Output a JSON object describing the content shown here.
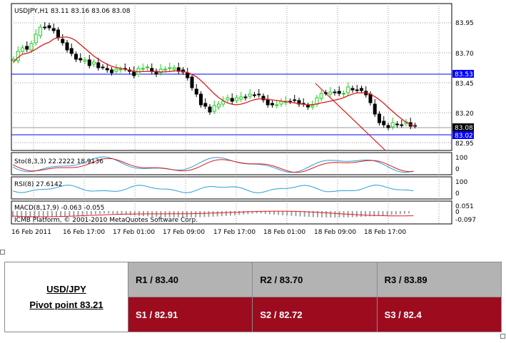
{
  "chart": {
    "title": "USDJPY,H1  83.11 83.16 83.06 83.08",
    "price_ticks": [
      "83.95",
      "83.70",
      "83.45",
      "83.20",
      "82.95"
    ],
    "label_upper_line": "83.53",
    "label_current": "83.08",
    "label_lower_line": "83.02",
    "stoch": {
      "label": "Sto(8,3,3) 22.2222 18.9136",
      "ticks": [
        "100",
        "0"
      ]
    },
    "rsi": {
      "label": "RSI(8) 27.6142",
      "ticks": [
        "100",
        "0"
      ]
    },
    "macd": {
      "label": "MACD(8,17,9) -0.063 -0.055",
      "watermark": "ICMB Platform, © 2001-2010 MetaQuotes Software Corp.",
      "ticks": [
        "0.051",
        "0",
        "-0.097"
      ]
    },
    "time_labels": [
      "16 Feb 2011",
      "16 Feb 17:00",
      "17 Feb 01:00",
      "17 Feb 09:00",
      "17 Feb 17:00",
      "18 Feb 01:00",
      "18 Feb 09:00",
      "18 Feb 17:00"
    ],
    "colors": {
      "bull": "#22cc22",
      "bear": "#000000",
      "ma": "#e01a1a",
      "level_line": "#0000ff",
      "stoch_main": "#2a9fd6",
      "stoch_signal": "#e01a1a",
      "rsi": "#2a9fd6",
      "macd_hist": "#a0a0a0",
      "macd_signal": "#e01a1a"
    }
  },
  "pivot": {
    "pair": "USD/JPY",
    "pivot_label": "Pivot point 83.21",
    "r1": "R1 / 83.40",
    "r2": "R2 / 83.70",
    "r3": "R3 / 83.89",
    "s1": "S1 / 82.91",
    "s2": "S2 / 82.72",
    "s3": "S3 / 82.4"
  }
}
